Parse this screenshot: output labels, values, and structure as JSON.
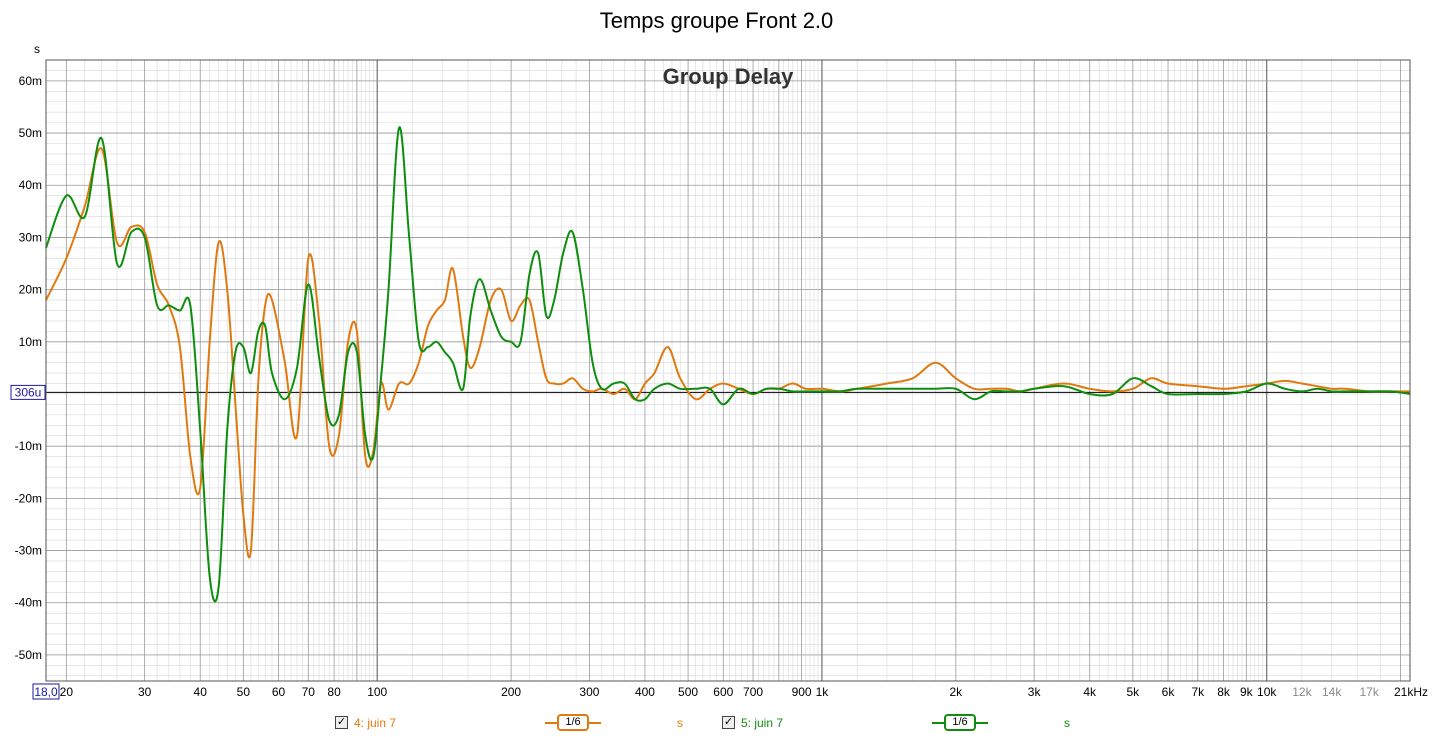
{
  "header": {
    "title": "Temps groupe Front 2.0",
    "unit": "s"
  },
  "plot": {
    "overlay_title": "Group Delay",
    "baseline_label": "306u",
    "x_start_label": "18,0"
  },
  "colors": {
    "series_orange": "#E07A10",
    "series_green": "#0E8E0E",
    "grid_major": "#9a9a9a",
    "grid_minor": "#d8d8d8"
  },
  "legend": [
    {
      "checked": "✓",
      "name": "4: juin 7",
      "smoothing": "1/6",
      "unit": "s",
      "color": "#E07A10"
    },
    {
      "checked": "✓",
      "name": "5: juin 7",
      "smoothing": "1/6",
      "unit": "s",
      "color": "#0E8E0E"
    }
  ],
  "chart_data": {
    "type": "line",
    "title": "Group Delay",
    "xlabel": "",
    "ylabel": "s",
    "x_scale": "log",
    "xlim": [
      18,
      21000
    ],
    "ylim": [
      -0.055,
      0.064
    ],
    "grid": true,
    "x_ticks": [
      {
        "v": 20,
        "label": "20"
      },
      {
        "v": 30,
        "label": "30"
      },
      {
        "v": 40,
        "label": "40"
      },
      {
        "v": 50,
        "label": "50"
      },
      {
        "v": 60,
        "label": "60"
      },
      {
        "v": 70,
        "label": "70"
      },
      {
        "v": 80,
        "label": "80"
      },
      {
        "v": 100,
        "label": "100"
      },
      {
        "v": 200,
        "label": "200"
      },
      {
        "v": 300,
        "label": "300"
      },
      {
        "v": 400,
        "label": "400"
      },
      {
        "v": 500,
        "label": "500"
      },
      {
        "v": 600,
        "label": "600"
      },
      {
        "v": 700,
        "label": "700"
      },
      {
        "v": 900,
        "label": "900"
      },
      {
        "v": 1000,
        "label": "1k"
      },
      {
        "v": 2000,
        "label": "2k"
      },
      {
        "v": 3000,
        "label": "3k"
      },
      {
        "v": 4000,
        "label": "4k"
      },
      {
        "v": 5000,
        "label": "5k"
      },
      {
        "v": 6000,
        "label": "6k"
      },
      {
        "v": 7000,
        "label": "7k"
      },
      {
        "v": 8000,
        "label": "8k"
      },
      {
        "v": 9000,
        "label": "9k"
      },
      {
        "v": 10000,
        "label": "10k"
      },
      {
        "v": 12000,
        "label": "12k"
      },
      {
        "v": 14000,
        "label": "14k"
      },
      {
        "v": 17000,
        "label": "17k"
      },
      {
        "v": 21000,
        "label": "21kHz"
      }
    ],
    "y_ticks": [
      {
        "v": 0.06,
        "label": "60m"
      },
      {
        "v": 0.05,
        "label": "50m"
      },
      {
        "v": 0.04,
        "label": "40m"
      },
      {
        "v": 0.03,
        "label": "30m"
      },
      {
        "v": 0.02,
        "label": "20m"
      },
      {
        "v": 0.01,
        "label": "10m"
      },
      {
        "v": -0.01,
        "label": "-10m"
      },
      {
        "v": -0.02,
        "label": "-20m"
      },
      {
        "v": -0.03,
        "label": "-30m"
      },
      {
        "v": -0.04,
        "label": "-40m"
      },
      {
        "v": -0.05,
        "label": "-50m"
      }
    ],
    "baseline": 0.000306,
    "series": [
      {
        "name": "4: juin 7",
        "color": "#E07A10",
        "x": [
          18,
          20,
          22,
          24,
          26,
          28,
          30,
          32,
          34,
          36,
          38,
          40,
          42,
          44,
          46,
          48,
          50,
          52,
          54,
          56,
          58,
          62,
          66,
          70,
          74,
          78,
          82,
          86,
          90,
          94,
          98,
          102,
          106,
          112,
          118,
          124,
          130,
          136,
          142,
          148,
          156,
          162,
          170,
          180,
          190,
          200,
          210,
          220,
          230,
          240,
          250,
          262,
          275,
          290,
          305,
          320,
          340,
          360,
          380,
          400,
          420,
          450,
          480,
          520,
          560,
          600,
          650,
          700,
          750,
          800,
          860,
          920,
          1000,
          1100,
          1200,
          1400,
          1600,
          1800,
          2000,
          2200,
          2400,
          2600,
          2800,
          3000,
          3500,
          4000,
          4500,
          5000,
          5500,
          6000,
          7000,
          8000,
          9000,
          10000,
          11000,
          12000,
          13000,
          14000,
          15000,
          17000,
          19000,
          21000
        ],
        "y": [
          0.018,
          0.026,
          0.036,
          0.047,
          0.029,
          0.032,
          0.031,
          0.021,
          0.017,
          0.009,
          -0.012,
          -0.018,
          0.01,
          0.029,
          0.02,
          -0.002,
          -0.023,
          -0.03,
          0.002,
          0.017,
          0.018,
          0.006,
          -0.008,
          0.026,
          0.014,
          -0.01,
          -0.008,
          0.01,
          0.012,
          -0.012,
          -0.011,
          0.002,
          -0.003,
          0.002,
          0.002,
          0.006,
          0.013,
          0.016,
          0.018,
          0.024,
          0.011,
          0.005,
          0.009,
          0.018,
          0.02,
          0.014,
          0.017,
          0.018,
          0.01,
          0.003,
          0.002,
          0.002,
          0.003,
          0.001,
          0.0005,
          0.001,
          0.0,
          0.001,
          -0.001,
          0.002,
          0.004,
          0.009,
          0.003,
          -0.001,
          0.001,
          0.002,
          0.001,
          0.0,
          0.001,
          0.001,
          0.002,
          0.001,
          0.001,
          0.0005,
          0.001,
          0.002,
          0.003,
          0.006,
          0.003,
          0.001,
          0.001,
          0.001,
          0.0005,
          0.001,
          0.002,
          0.001,
          0.0005,
          0.001,
          0.003,
          0.002,
          0.0015,
          0.001,
          0.0015,
          0.002,
          0.0025,
          0.002,
          0.0015,
          0.001,
          0.001,
          0.0005,
          0.0005,
          0.0005
        ]
      },
      {
        "name": "5: juin 7",
        "color": "#0E8E0E",
        "x": [
          18,
          20,
          22,
          24,
          26,
          28,
          30,
          32,
          34,
          36,
          38,
          40,
          42,
          44,
          46,
          48,
          50,
          52,
          54,
          56,
          58,
          62,
          66,
          70,
          74,
          78,
          82,
          86,
          90,
          94,
          98,
          102,
          106,
          112,
          118,
          124,
          130,
          136,
          142,
          148,
          156,
          162,
          170,
          180,
          190,
          200,
          210,
          220,
          230,
          240,
          250,
          262,
          275,
          290,
          305,
          320,
          340,
          360,
          380,
          400,
          420,
          450,
          480,
          520,
          560,
          600,
          650,
          700,
          750,
          800,
          860,
          920,
          1000,
          1100,
          1200,
          1400,
          1600,
          1800,
          2000,
          2200,
          2400,
          2600,
          2800,
          3000,
          3500,
          4000,
          4500,
          5000,
          5500,
          6000,
          7000,
          8000,
          9000,
          10000,
          11000,
          12000,
          13000,
          14000,
          15000,
          17000,
          19000,
          21000
        ],
        "y": [
          0.028,
          0.038,
          0.034,
          0.049,
          0.025,
          0.031,
          0.03,
          0.017,
          0.017,
          0.016,
          0.017,
          -0.007,
          -0.035,
          -0.037,
          -0.007,
          0.008,
          0.009,
          0.004,
          0.012,
          0.013,
          0.004,
          -0.001,
          0.005,
          0.021,
          0.007,
          -0.005,
          -0.004,
          0.008,
          0.008,
          -0.008,
          -0.012,
          0.003,
          0.02,
          0.051,
          0.03,
          0.01,
          0.009,
          0.01,
          0.008,
          0.006,
          0.001,
          0.015,
          0.022,
          0.016,
          0.011,
          0.01,
          0.01,
          0.023,
          0.027,
          0.015,
          0.018,
          0.027,
          0.031,
          0.02,
          0.006,
          0.001,
          0.002,
          0.002,
          -0.001,
          -0.001,
          0.001,
          0.002,
          0.001,
          0.001,
          0.001,
          -0.002,
          0.001,
          0.0,
          0.001,
          0.001,
          0.0005,
          0.0005,
          0.0005,
          0.0005,
          0.001,
          0.001,
          0.001,
          0.001,
          0.001,
          -0.001,
          0.0005,
          0.0005,
          0.0005,
          0.001,
          0.0015,
          0.0,
          0.0,
          0.003,
          0.0015,
          0.0,
          0.0,
          0.0,
          0.0005,
          0.002,
          0.001,
          0.0005,
          0.001,
          0.0005,
          0.0005,
          0.0005,
          0.0005,
          0.0
        ]
      }
    ]
  }
}
